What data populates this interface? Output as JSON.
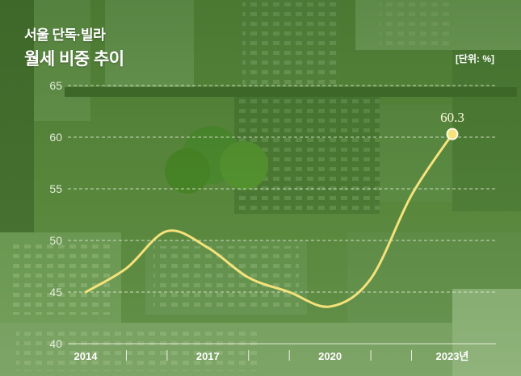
{
  "colors": {
    "background": "#5a893d",
    "line": "#f4e27b",
    "text": "#ffffff"
  },
  "chart_data": {
    "type": "line",
    "title_lines": [
      "서울 단독·빌라",
      "월세 비중 추이"
    ],
    "unit": "[단위: %]",
    "x": [
      2014,
      2015,
      2016,
      2017,
      2018,
      2019,
      2020,
      2021,
      2022,
      2023
    ],
    "xlim": [
      2014,
      2023
    ],
    "x_tick_labels": [
      {
        "x": 2014,
        "label": "2014"
      },
      {
        "x": 2017,
        "label": "2017"
      },
      {
        "x": 2020,
        "label": "2020"
      },
      {
        "x": 2023,
        "label": "2023년"
      }
    ],
    "y_ticks": [
      40,
      45,
      50,
      55,
      60,
      65
    ],
    "ylim": [
      40,
      65
    ],
    "grid": true,
    "series": [
      {
        "values": [
          45.0,
          47.3,
          50.9,
          49.3,
          46.4,
          45.0,
          43.6,
          46.3,
          54.4,
          60.3
        ]
      }
    ],
    "annotations": [
      {
        "x": 2023,
        "y": 60.3,
        "text": "60.3"
      }
    ]
  }
}
